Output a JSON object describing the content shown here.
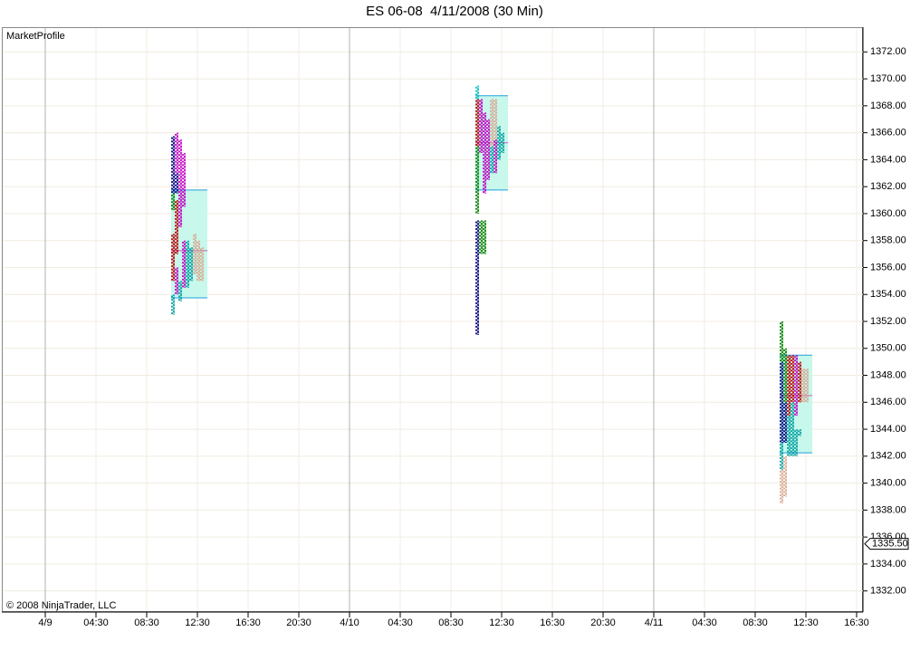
{
  "chart_data": {
    "type": "market-profile",
    "title": "ES 06-08  4/11/2008 (30 Min)",
    "indicator": "MarketProfile",
    "copyright": "© 2008 NinjaTrader, LLC",
    "xlim": [
      -2,
      65
    ],
    "ylim": [
      1330.5,
      1373.5
    ],
    "grid": true,
    "value_area_color": "#c8f7ec",
    "value_area_edge_color": "#20a0e0",
    "poc_color": "#c060c0",
    "xticks": [
      {
        "value": 0.5,
        "label": "4/9"
      },
      {
        "value": 4.5,
        "label": "04:30"
      },
      {
        "value": 8.5,
        "label": "08:30"
      },
      {
        "value": 12.5,
        "label": "12:30"
      },
      {
        "value": 16.5,
        "label": "16:30"
      },
      {
        "value": 20.5,
        "label": "20:30"
      },
      {
        "value": 24.5,
        "label": "4/10"
      },
      {
        "value": 28.5,
        "label": "04:30"
      },
      {
        "value": 32.5,
        "label": "08:30"
      },
      {
        "value": 36.5,
        "label": "12:30"
      },
      {
        "value": 40.5,
        "label": "16:30"
      },
      {
        "value": 44.5,
        "label": "20:30"
      },
      {
        "value": 48.5,
        "label": "4/11"
      },
      {
        "value": 52.5,
        "label": "04:30"
      },
      {
        "value": 56.5,
        "label": "08:30"
      },
      {
        "value": 60.5,
        "label": "12:30"
      },
      {
        "value": 64.5,
        "label": "16:30"
      }
    ],
    "yticks": [
      {
        "value": 1332,
        "label": "1332.00"
      },
      {
        "value": 1334,
        "label": "1334.00"
      },
      {
        "value": 1336,
        "label": "1336.00"
      },
      {
        "value": 1338,
        "label": "1338.00"
      },
      {
        "value": 1340,
        "label": "1340.00"
      },
      {
        "value": 1342,
        "label": "1342.00"
      },
      {
        "value": 1344,
        "label": "1344.00"
      },
      {
        "value": 1346,
        "label": "1346.00"
      },
      {
        "value": 1348,
        "label": "1348.00"
      },
      {
        "value": 1350,
        "label": "1350.00"
      },
      {
        "value": 1352,
        "label": "1352.00"
      },
      {
        "value": 1354,
        "label": "1354.00"
      },
      {
        "value": 1356,
        "label": "1356.00"
      },
      {
        "value": 1358,
        "label": "1358.00"
      },
      {
        "value": 1360,
        "label": "1360.00"
      },
      {
        "value": 1362,
        "label": "1362.00"
      },
      {
        "value": 1364,
        "label": "1364.00"
      },
      {
        "value": 1366,
        "label": "1366.00"
      },
      {
        "value": 1368,
        "label": "1368.00"
      },
      {
        "value": 1370,
        "label": "1370.00"
      },
      {
        "value": 1372,
        "label": "1372.00"
      }
    ],
    "last_price": {
      "value": 1335.5,
      "label": "1335.50"
    },
    "profiles": [
      {
        "start": 10.43,
        "value_area": [
          1361.75,
          1353.75
        ],
        "poc": 1357.25,
        "columns": [
          [
            {
              "color": "#000080",
              "high": 1365.75,
              "low": 1361.5
            },
            {
              "color": "#008000",
              "high": 1361.5,
              "low": 1360.25
            },
            {
              "color": "#c00000",
              "high": 1358.5,
              "low": 1355
            },
            {
              "color": "#00a0a0",
              "high": 1354,
              "low": 1352.5
            }
          ],
          [
            {
              "color": "#c000c0",
              "high": 1366,
              "low": 1363
            },
            {
              "color": "#000080",
              "high": 1363,
              "low": 1361.5
            },
            {
              "color": "#c00000",
              "high": 1361,
              "low": 1357
            },
            {
              "color": "#c000c0",
              "high": 1356,
              "low": 1354
            }
          ],
          [
            {
              "color": "#c000c0",
              "high": 1365.5,
              "low": 1359
            },
            {
              "color": "#00a0a0",
              "high": 1355,
              "low": 1353.5
            }
          ],
          [
            {
              "color": "#c000c0",
              "high": 1364.5,
              "low": 1360.5
            },
            {
              "color": "#c000c0",
              "high": 1358,
              "low": 1354.5
            }
          ],
          [
            {
              "color": "#00a0a0",
              "high": 1358,
              "low": 1354.5
            }
          ],
          [
            {
              "color": "#00a0a0",
              "high": 1357.5,
              "low": 1355
            }
          ],
          [
            {
              "color": "#d8a890",
              "high": 1358.5,
              "low": 1355.5
            }
          ],
          [
            {
              "color": "#d8a890",
              "high": 1358,
              "low": 1355
            }
          ],
          [
            {
              "color": "#d8a890",
              "high": 1357.5,
              "low": 1355
            }
          ]
        ]
      },
      {
        "start": 34.43,
        "value_area": [
          1368.75,
          1361.75
        ],
        "poc": 1365.25,
        "columns": [
          [
            {
              "color": "#00c0c0",
              "high": 1369.5,
              "low": 1368.5
            },
            {
              "color": "#c00000",
              "high": 1368.5,
              "low": 1365
            },
            {
              "color": "#008000",
              "high": 1365,
              "low": 1360
            },
            {
              "color": "#000080",
              "high": 1359.5,
              "low": 1351
            }
          ],
          [
            {
              "color": "#c000c0",
              "high": 1368.5,
              "low": 1364.5
            },
            {
              "color": "#008000",
              "high": 1359.5,
              "low": 1357
            }
          ],
          [
            {
              "color": "#c000c0",
              "high": 1367.5,
              "low": 1361.5
            },
            {
              "color": "#008000",
              "high": 1359.5,
              "low": 1357
            }
          ],
          [
            {
              "color": "#c000c0",
              "high": 1367,
              "low": 1362.5
            }
          ],
          [
            {
              "color": "#d8a890",
              "high": 1368.5,
              "low": 1365
            },
            {
              "color": "#00a0a0",
              "high": 1365,
              "low": 1363
            }
          ],
          [
            {
              "color": "#d8a890",
              "high": 1368.5,
              "low": 1365.5
            },
            {
              "color": "#c000c0",
              "high": 1365.5,
              "low": 1363
            }
          ],
          [
            {
              "color": "#00a0a0",
              "high": 1366.5,
              "low": 1364
            }
          ],
          [
            {
              "color": "#00a0a0",
              "high": 1366,
              "low": 1364.5
            }
          ]
        ]
      },
      {
        "start": 58.43,
        "value_area": [
          1349.5,
          1342.25
        ],
        "poc": 1346.5,
        "columns": [
          [
            {
              "color": "#008000",
              "high": 1352,
              "low": 1349
            },
            {
              "color": "#000080",
              "high": 1349,
              "low": 1343
            },
            {
              "color": "#00a0a0",
              "high": 1343,
              "low": 1341
            },
            {
              "color": "#d8a890",
              "high": 1341,
              "low": 1338.5
            }
          ],
          [
            {
              "color": "#008000",
              "high": 1350,
              "low": 1346
            },
            {
              "color": "#000080",
              "high": 1346,
              "low": 1343
            },
            {
              "color": "#d8a890",
              "high": 1342,
              "low": 1339
            }
          ],
          [
            {
              "color": "#c00000",
              "high": 1349.5,
              "low": 1345
            },
            {
              "color": "#00a0a0",
              "high": 1345,
              "low": 1342
            }
          ],
          [
            {
              "color": "#c00000",
              "high": 1349.5,
              "low": 1346
            },
            {
              "color": "#00a0a0",
              "high": 1346,
              "low": 1342
            }
          ],
          [
            {
              "color": "#c000c0",
              "high": 1349.5,
              "low": 1345
            },
            {
              "color": "#00a0a0",
              "high": 1344,
              "low": 1342
            }
          ],
          [
            {
              "color": "#c00000",
              "high": 1349,
              "low": 1346
            },
            {
              "color": "#00a0a0",
              "high": 1344,
              "low": 1343.5
            }
          ],
          [
            {
              "color": "#d8a890",
              "high": 1348.5,
              "low": 1346
            }
          ],
          [
            {
              "color": "#d8a890",
              "high": 1348.5,
              "low": 1346
            }
          ]
        ]
      }
    ]
  }
}
